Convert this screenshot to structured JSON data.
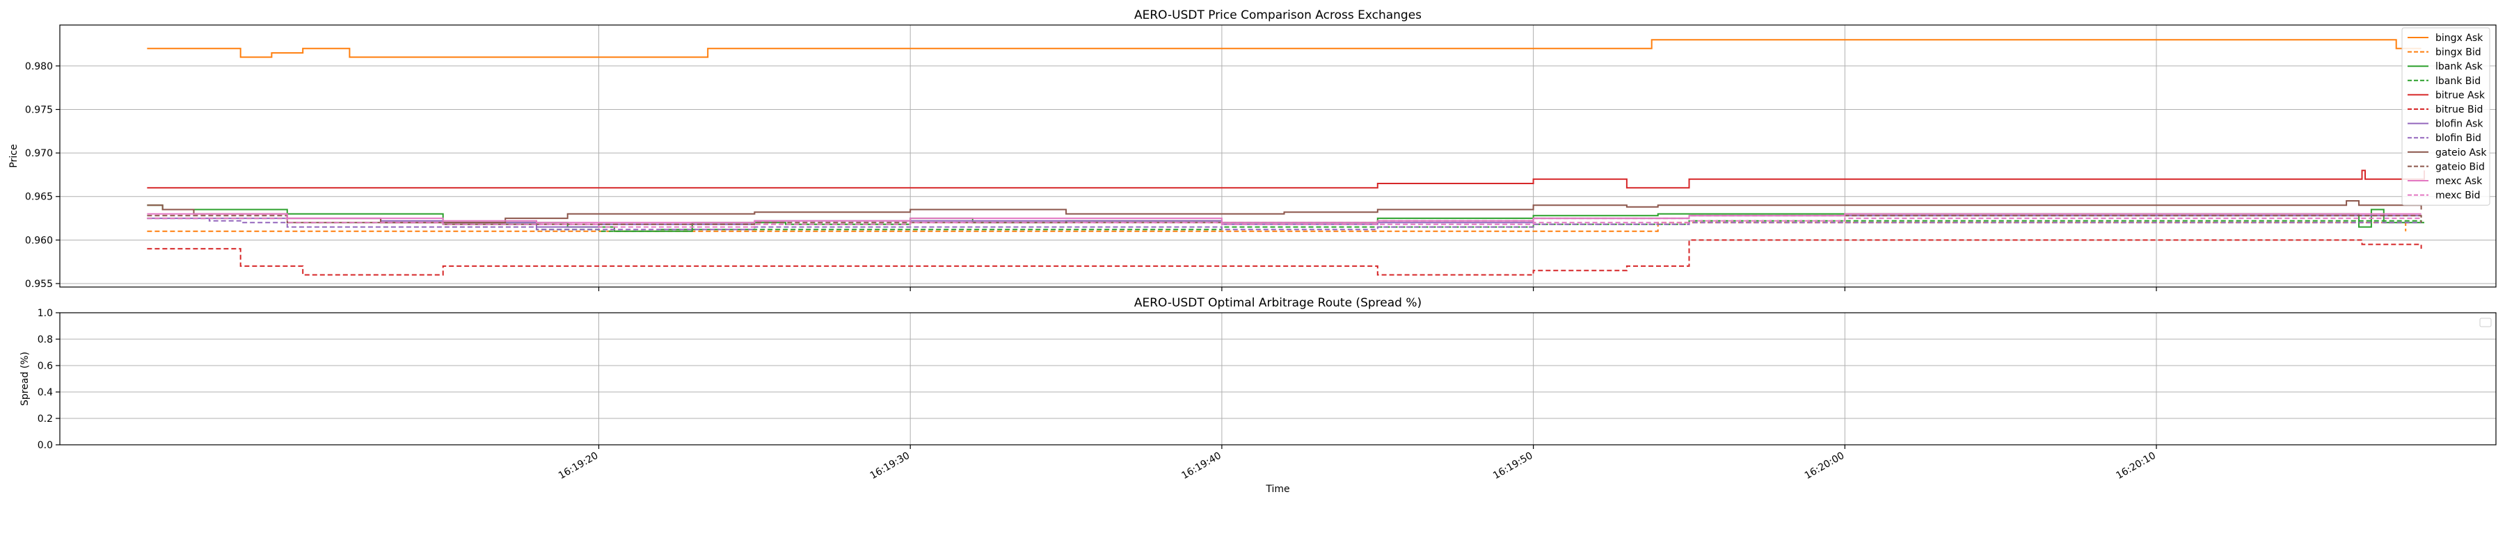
{
  "figure": {
    "background": "#ffffff"
  },
  "chart_data": [
    {
      "type": "line",
      "title": "AERO-USDT Price Comparison Across Exchanges",
      "xlabel": "",
      "ylabel": "Price",
      "xlim": [
        -7.3,
        70.9
      ],
      "ylim": [
        0.9546,
        0.9847
      ],
      "x_unit": "seconds after 16:19:10",
      "yticks": [
        0.955,
        0.96,
        0.965,
        0.97,
        0.975,
        0.98
      ],
      "ytick_labels": [
        "0.955",
        "0.960",
        "0.965",
        "0.970",
        "0.975",
        "0.980"
      ],
      "xticks": [
        10,
        20,
        30,
        40,
        50,
        60
      ],
      "grid": true,
      "legend_position": "top-right",
      "series": [
        {
          "name": "bingx Ask",
          "color": "#ff7f0e",
          "dash": "solid",
          "x": [
            -4.5,
            -3.5,
            -2.5,
            -1.5,
            -1.1,
            -0.5,
            0.5,
            1.7,
            2.0,
            6.5,
            7.5,
            12.7,
            13.5,
            14.3,
            18.6,
            32.5,
            43.8,
            50.0,
            65.0,
            67.1,
            67.7,
            68.5
          ],
          "y": [
            0.982,
            0.982,
            0.982,
            0.981,
            0.981,
            0.9815,
            0.982,
            0.982,
            0.981,
            0.981,
            0.981,
            0.981,
            0.982,
            0.982,
            0.982,
            0.982,
            0.983,
            0.983,
            0.983,
            0.983,
            0.982,
            0.982
          ]
        },
        {
          "name": "bingx Bid",
          "color": "#ff7f0e",
          "dash": "dashed",
          "x": [
            -4.5,
            0.0,
            5.0,
            10.0,
            20.0,
            32.0,
            40.0,
            44.0,
            45.0,
            50.0,
            66.5,
            68.0
          ],
          "y": [
            0.961,
            0.961,
            0.961,
            0.961,
            0.961,
            0.961,
            0.961,
            0.962,
            0.962,
            0.962,
            0.962,
            0.961
          ]
        },
        {
          "name": "lbank Ask",
          "color": "#2ca02c",
          "dash": "solid",
          "x": [
            -4.5,
            -4.0,
            -3.0,
            0.0,
            2.5,
            5.0,
            9.0,
            10.5,
            13.0,
            16.0,
            20.0,
            22.0,
            25.0,
            30.0,
            32.0,
            35.0,
            38.0,
            40.0,
            42.0,
            44.0,
            46.0,
            55.0,
            66.0,
            66.5,
            66.9,
            67.3,
            68.2,
            68.6
          ],
          "y": [
            0.964,
            0.9635,
            0.9635,
            0.963,
            0.963,
            0.962,
            0.9615,
            0.961,
            0.962,
            0.9618,
            0.9625,
            0.962,
            0.9622,
            0.962,
            0.962,
            0.9625,
            0.9625,
            0.9628,
            0.9628,
            0.963,
            0.963,
            0.963,
            0.963,
            0.9615,
            0.9635,
            0.962,
            0.962,
            0.962
          ]
        },
        {
          "name": "lbank Bid",
          "color": "#2ca02c",
          "dash": "dashed",
          "x": [
            -4.5,
            0.0,
            5.0,
            8.0,
            10.0,
            12.0,
            15.0,
            20.0,
            25.0,
            30.0,
            35.0,
            40.0,
            45.0,
            50.0,
            66.5,
            68.5
          ],
          "y": [
            0.9625,
            0.962,
            0.9618,
            0.9612,
            0.961,
            0.9612,
            0.9612,
            0.9612,
            0.9612,
            0.9615,
            0.9615,
            0.9618,
            0.9622,
            0.9622,
            0.9622,
            0.962
          ]
        },
        {
          "name": "bitrue Ask",
          "color": "#d62728",
          "dash": "solid",
          "x": [
            -4.5,
            10.0,
            20.0,
            30.0,
            35.0,
            40.0,
            43.0,
            45.0,
            50.0,
            60.0,
            66.5,
            66.6,
            66.7,
            68.5,
            68.6
          ],
          "y": [
            0.966,
            0.966,
            0.966,
            0.966,
            0.9665,
            0.967,
            0.966,
            0.967,
            0.967,
            0.967,
            0.967,
            0.968,
            0.967,
            0.967,
            0.968
          ]
        },
        {
          "name": "bitrue Bid",
          "color": "#d62728",
          "dash": "dashed",
          "x": [
            -4.5,
            -1.5,
            0.5,
            5.0,
            10.0,
            20.0,
            23.0,
            27.5,
            35.0,
            40.0,
            43.0,
            45.0,
            50.0,
            66.5,
            66.6,
            68.5
          ],
          "y": [
            0.959,
            0.957,
            0.956,
            0.957,
            0.957,
            0.957,
            0.957,
            0.957,
            0.956,
            0.9565,
            0.957,
            0.96,
            0.96,
            0.96,
            0.9595,
            0.959
          ]
        },
        {
          "name": "blofin Ask",
          "color": "#9467bd",
          "dash": "solid",
          "x": [
            -4.5,
            0.5,
            3.0,
            5.0,
            8.0,
            10.0,
            15.0,
            20.0,
            25.0,
            30.0,
            35.0,
            40.0,
            45.0,
            50.0,
            66.5,
            68.5
          ],
          "y": [
            0.9625,
            0.9625,
            0.9622,
            0.962,
            0.9615,
            0.9618,
            0.9622,
            0.9622,
            0.9622,
            0.9618,
            0.962,
            0.9625,
            0.9628,
            0.9628,
            0.9628,
            0.9628
          ]
        },
        {
          "name": "blofin Bid",
          "color": "#9467bd",
          "dash": "dashed",
          "x": [
            -4.5,
            -2.5,
            -1.5,
            0.0,
            5.0,
            8.0,
            10.0,
            15.0,
            20.0,
            25.0,
            30.0,
            35.0,
            40.0,
            45.0,
            50.0,
            66.5,
            68.5
          ],
          "y": [
            0.9625,
            0.9622,
            0.962,
            0.9615,
            0.9615,
            0.9612,
            0.9612,
            0.9615,
            0.9615,
            0.9615,
            0.9612,
            0.9615,
            0.9618,
            0.962,
            0.962,
            0.962,
            0.962
          ]
        },
        {
          "name": "gateio Ask",
          "color": "#8c564b",
          "dash": "solid",
          "x": [
            -4.5,
            -4.0,
            -3.0,
            0.0,
            3.0,
            5.0,
            7.0,
            8.0,
            9.0,
            13.0,
            15.0,
            20.0,
            25.0,
            30.0,
            32.0,
            35.0,
            37.0,
            40.0,
            43.0,
            44.0,
            46.0,
            66.0,
            66.1,
            66.5,
            68.5
          ],
          "y": [
            0.964,
            0.9635,
            0.963,
            0.9625,
            0.962,
            0.962,
            0.9625,
            0.9625,
            0.963,
            0.963,
            0.9632,
            0.9635,
            0.963,
            0.963,
            0.9632,
            0.9635,
            0.9635,
            0.964,
            0.9638,
            0.964,
            0.964,
            0.964,
            0.9645,
            0.964,
            0.9635
          ]
        },
        {
          "name": "gateio Bid",
          "color": "#8c564b",
          "dash": "dashed",
          "x": [
            -4.5,
            -4.0,
            0.0,
            5.0,
            10.0,
            15.0,
            20.0,
            25.0,
            30.0,
            35.0,
            40.0,
            45.0,
            50.0,
            66.5,
            68.5
          ],
          "y": [
            0.9628,
            0.9628,
            0.962,
            0.9618,
            0.9618,
            0.962,
            0.962,
            0.962,
            0.962,
            0.9622,
            0.9625,
            0.9628,
            0.9628,
            0.9628,
            0.962
          ]
        },
        {
          "name": "mexc Ask",
          "color": "#e377c2",
          "dash": "solid",
          "x": [
            -4.5,
            0.0,
            5.0,
            8.0,
            10.0,
            15.0,
            20.0,
            25.0,
            30.0,
            35.0,
            40.0,
            45.0,
            50.0,
            66.5,
            68.5
          ],
          "y": [
            0.963,
            0.9625,
            0.9622,
            0.962,
            0.962,
            0.9622,
            0.9625,
            0.9625,
            0.962,
            0.9622,
            0.9625,
            0.9628,
            0.963,
            0.963,
            0.963
          ]
        },
        {
          "name": "mexc Bid",
          "color": "#e377c2",
          "dash": "dashed",
          "x": [
            -4.5,
            0.0,
            5.0,
            10.0,
            15.0,
            20.0,
            25.0,
            30.0,
            35.0,
            40.0,
            45.0,
            50.0,
            66.5,
            68.5
          ],
          "y": [
            0.9625,
            0.962,
            0.9618,
            0.9615,
            0.9618,
            0.962,
            0.962,
            0.9618,
            0.9618,
            0.962,
            0.9622,
            0.9625,
            0.9625,
            0.9625
          ]
        }
      ]
    },
    {
      "type": "line",
      "title": "AERO-USDT Optimal Arbitrage Route (Spread %)",
      "xlabel": "Time",
      "ylabel": "Spread (%)",
      "xlim": [
        -7.3,
        70.9
      ],
      "ylim": [
        0.0,
        1.0
      ],
      "yticks": [
        0.0,
        0.2,
        0.4,
        0.6,
        0.8,
        1.0
      ],
      "ytick_labels": [
        "0.0",
        "0.2",
        "0.4",
        "0.6",
        "0.8",
        "1.0"
      ],
      "xticks": [
        10,
        20,
        30,
        40,
        50,
        60
      ],
      "xtick_labels": [
        "16:19:20",
        "16:19:30",
        "16:19:40",
        "16:19:50",
        "16:20:00",
        "16:20:10"
      ],
      "grid": true,
      "series": []
    }
  ]
}
